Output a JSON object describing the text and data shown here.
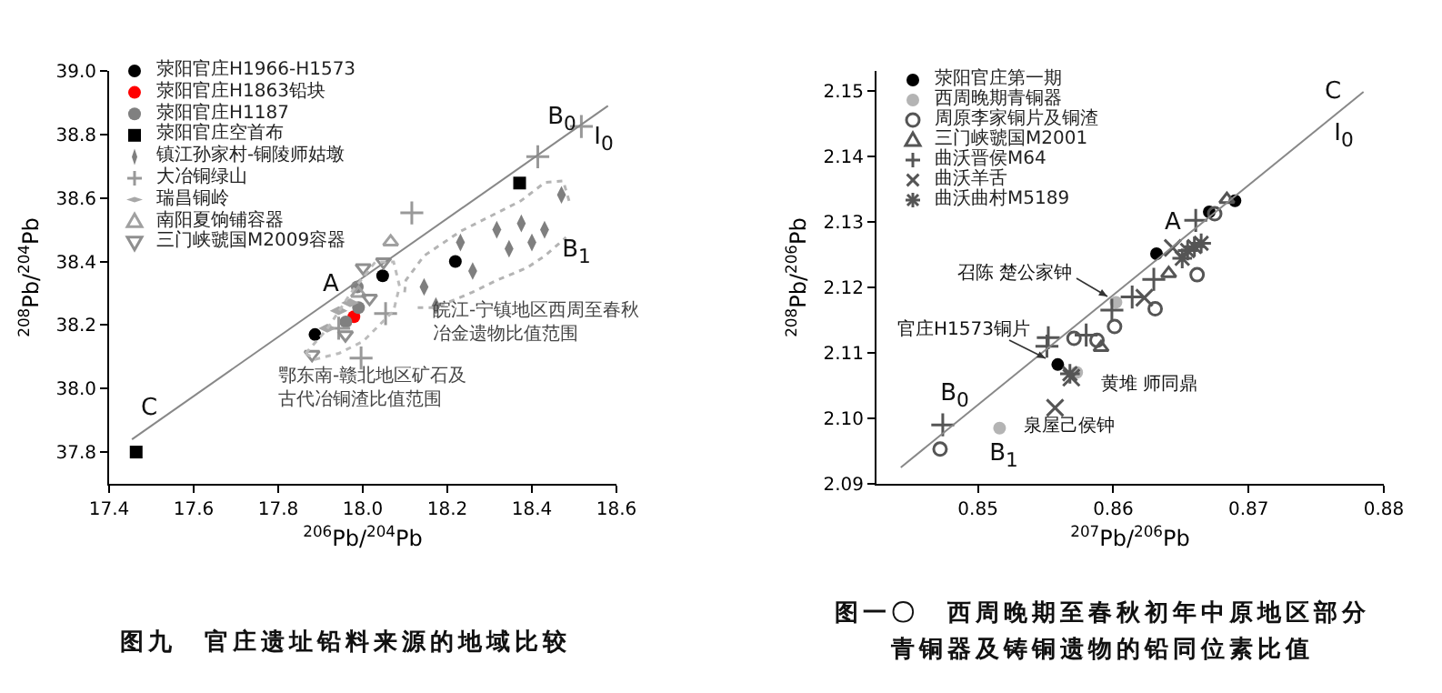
{
  "chart_data": [
    {
      "type": "scatter",
      "title": "图九　官庄遗址铅料来源的地域比较",
      "xlabel": "$^{206}$Pb/$^{204}$Pb",
      "ylabel": "$^{208}$Pb/$^{204}$Pb",
      "xlim": [
        17.4,
        18.6
      ],
      "xticks": [
        17.4,
        17.6,
        17.8,
        {
          "value": 18,
          "label": "18.0"
        },
        18.2,
        18.4,
        18.6
      ],
      "ylim": [
        37.7,
        39.0
      ],
      "yticks": [
        37.8,
        {
          "value": 38,
          "label": "38.0"
        },
        38.2,
        38.4,
        38.6,
        38.8,
        {
          "value": 39,
          "label": "39.0"
        }
      ],
      "grid": false,
      "legend": "top left",
      "series": [
        {
          "name": "荥阳官庄H1966-H1573",
          "marker": "circle",
          "color": "#000000",
          "x": [
            17.887,
            18.047,
            18.219
          ],
          "values": [
            38.17,
            38.355,
            38.4
          ]
        },
        {
          "name": "荥阳官庄H1863铅块",
          "marker": "circle",
          "color": "#ff0000",
          "x": [
            17.979
          ],
          "values": [
            38.226
          ]
        },
        {
          "name": "荥阳官庄H1187",
          "marker": "circle",
          "color": "#808080",
          "x": [
            17.987,
            17.99,
            17.96
          ],
          "values": [
            38.32,
            38.255,
            38.21
          ]
        },
        {
          "name": "荥阳官庄空首布",
          "marker": "square",
          "color": "#000000",
          "x": [
            17.464,
            18.371
          ],
          "values": [
            37.8,
            38.647
          ]
        },
        {
          "name": "镇江孙家村-铜陵师姑墩",
          "color": "#7f7f7f",
          "x": [
            18.145,
            18.231,
            18.317,
            18.375,
            18.43,
            18.47,
            18.26,
            18.346,
            18.4,
            18.173
          ],
          "values": [
            38.32,
            38.46,
            38.5,
            38.52,
            38.5,
            38.61,
            38.37,
            38.44,
            38.46,
            38.26
          ]
        },
        {
          "name": "大冶铜绿山",
          "color": "#999999",
          "x": [
            18.116,
            17.996,
            18.054,
            18.414,
            18.517,
            17.943
          ],
          "values": [
            38.553,
            38.096,
            38.236,
            38.73,
            38.825,
            38.19
          ]
        },
        {
          "name": "瑞昌铜岭",
          "color": "#a8a8a8",
          "x": [
            17.916,
            17.97,
            17.943
          ],
          "values": [
            38.19,
            38.27,
            38.245
          ]
        },
        {
          "name": "南阳夏饷铺容器",
          "marker": "triangle",
          "color": "#a0a0a0",
          "x": [
            18.066,
            17.99
          ],
          "values": [
            38.462,
            38.3
          ]
        },
        {
          "name": "三门峡虢国M2009容器",
          "color": "#8f8f8f",
          "x": [
            18.049,
            18.001,
            18.016,
            17.959,
            17.88
          ],
          "values": [
            38.399,
            38.38,
            38.284,
            38.169,
            38.107
          ]
        },
        {
          "type": "line",
          "color": "#888888",
          "line_style": "solid",
          "x": [
            17.454,
            18.58
          ],
          "values": [
            37.84,
            38.89
          ]
        },
        {
          "type": "line",
          "color": "#b4b4b4",
          "line_style": "dotted",
          "x": [
            18.099,
            18.102,
            18.145,
            18.231,
            18.374,
            18.431,
            18.474,
            18.488
          ],
          "values": [
            38.303,
            38.341,
            38.418,
            38.495,
            38.591,
            38.649,
            38.654,
            38.591
          ]
        },
        {
          "type": "line",
          "color": "#b4b4b4",
          "line_style": "dotted",
          "x": [
            18.13,
            18.173,
            18.259,
            18.317,
            18.388,
            18.431,
            18.481
          ],
          "values": [
            38.255,
            38.255,
            38.303,
            38.341,
            38.38,
            38.418,
            38.476
          ]
        },
        {
          "type": "line",
          "color": "#bcbcbc",
          "line_style": "dotted",
          "x": [
            17.865,
            17.916,
            17.973,
            18.03,
            18.073,
            18.087
          ],
          "values": [
            38.111,
            38.188,
            38.303,
            38.399,
            38.399,
            38.322
          ]
        },
        {
          "type": "line",
          "color": "#bcbcbc",
          "line_style": "dotted",
          "x": [
            17.865,
            17.887,
            17.944,
            18.001,
            18.073,
            18.087
          ],
          "values": [
            38.111,
            38.092,
            38.111,
            38.149,
            38.245,
            38.322
          ]
        }
      ],
      "annotations": [
        "A",
        "B$_{0}$",
        "I$_{0}$",
        "B$_{1}$",
        "C",
        "皖江-宁镇地区西周至春秋冶金遗物比值范围",
        "鄂东南-赣北地区矿石及古代冶铜渣比值范围"
      ]
    },
    {
      "type": "scatter",
      "title": "图一〇　西周晚期至春秋初年中原地区部分青铜器及铸铜遗物的铅同位素比值",
      "xlabel": "$^{207}$Pb/$^{206}$Pb",
      "ylabel": "$^{208}$Pb/$^{206}$Pb",
      "xlim": [
        0.8425,
        0.88
      ],
      "xticks": [
        0.85,
        0.86,
        0.87,
        0.88
      ],
      "ylim": [
        2.09,
        2.153
      ],
      "yticks": [
        2.09,
        {
          "value": 2.1,
          "label": "2.10"
        },
        2.11,
        2.12,
        2.13,
        2.14,
        2.15
      ],
      "grid": false,
      "legend": "top left",
      "series": [
        {
          "name": "荥阳官庄第一期",
          "marker": "circle",
          "color": "#000000",
          "x": [
            0.8632,
            0.8671,
            0.869,
            0.8559
          ],
          "values": [
            2.1251,
            2.1315,
            2.1332,
            2.1082
          ]
        },
        {
          "name": "西周晚期青铜器",
          "marker": "circle",
          "color": "#b4b4b4",
          "x": [
            0.8602,
            0.8573,
            0.8516
          ],
          "values": [
            2.1177,
            2.107,
            2.0985
          ]
        },
        {
          "name": "周原李家铜片及铜渣",
          "color": "#555555",
          "x": [
            0.8472,
            0.8571,
            0.8588,
            0.8601,
            0.8631,
            0.8662,
            0.8675
          ],
          "values": [
            2.0953,
            2.1122,
            2.1119,
            2.114,
            2.1167,
            2.1219,
            2.1312
          ]
        },
        {
          "name": "三门峡虢国M2001",
          "marker": "triangle",
          "color": "#555555",
          "x": [
            0.8591,
            0.8641,
            0.8684
          ],
          "values": [
            2.1108,
            2.1221,
            2.1334
          ]
        },
        {
          "name": "曲沃晋侯M64",
          "color": "#555555",
          "x": [
            0.8474,
            0.8552,
            0.8551,
            0.858,
            0.8599,
            0.8614,
            0.863,
            0.8661
          ],
          "values": [
            2.099,
            2.1123,
            2.111,
            2.1127,
            2.1165,
            2.1185,
            2.1212,
            2.1302
          ]
        },
        {
          "name": "曲沃羊舌",
          "color": "#555555",
          "x": [
            0.8557,
            0.8569,
            0.8623,
            0.8644
          ],
          "values": [
            2.1016,
            2.1062,
            2.1184,
            2.126
          ]
        },
        {
          "name": "曲沃曲村M5189",
          "color": "#555555",
          "x": [
            0.8568,
            0.8651,
            0.8655,
            0.866,
            0.8665
          ],
          "values": [
            2.1068,
            2.1244,
            2.1256,
            2.1262,
            2.1267
          ]
        },
        {
          "type": "line",
          "color": "#888888",
          "line_style": "solid",
          "x": [
            0.8443,
            0.8785
          ],
          "values": [
            2.0925,
            2.1498
          ]
        }
      ],
      "annotations": [
        "A",
        "C",
        "I$_{0}$",
        "B$_{0}$",
        "B$_{1}$",
        "召陈 楚公家钟",
        "官庄H1573铜片",
        "黄堆 师同鼎",
        "泉屋己侯钟"
      ]
    }
  ]
}
